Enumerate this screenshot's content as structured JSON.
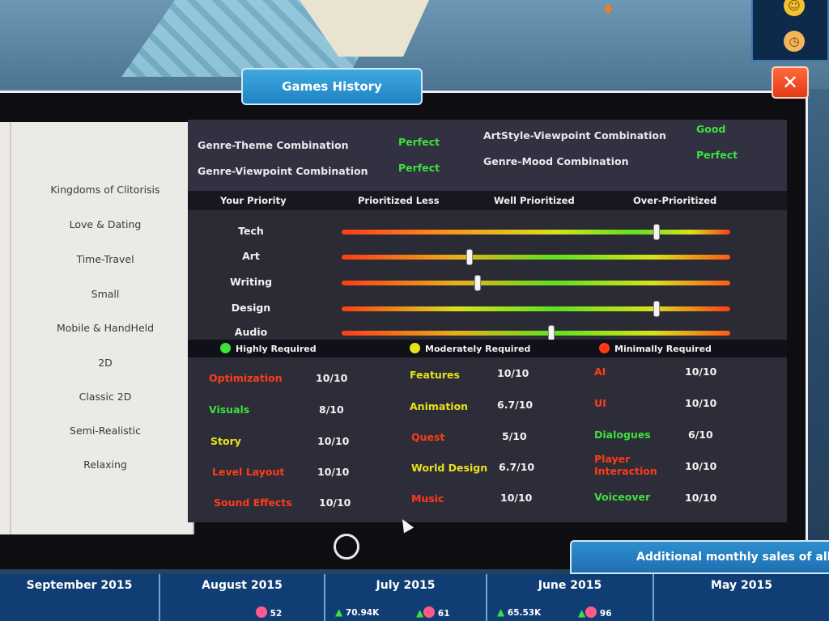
{
  "window": {
    "title": "Games History",
    "close_icon": "✕"
  },
  "sidebar": {
    "items": [
      {
        "label": "Kingdoms of Clitorisis"
      },
      {
        "label": "Love & Dating"
      },
      {
        "label": "Time-Travel"
      },
      {
        "label": "Small"
      },
      {
        "label": "Mobile & HandHeld"
      },
      {
        "label": "2D"
      },
      {
        "label": "Classic 2D"
      },
      {
        "label": "Semi-Realistic"
      },
      {
        "label": "Relaxing"
      }
    ]
  },
  "combinations": [
    {
      "label": "Genre-Theme Combination",
      "value": "Perfect"
    },
    {
      "label": "Genre-Viewpoint Combination",
      "value": "Perfect"
    },
    {
      "label": "ArtStyle-Viewpoint Combination",
      "value": "Good"
    },
    {
      "label": "Genre-Mood Combination",
      "value": "Perfect"
    }
  ],
  "priority": {
    "headers": {
      "your_priority": "Your Priority",
      "prioritized_less": "Prioritized Less",
      "well_prioritized": "Well Prioritized",
      "over_prioritized": "Over-Prioritized"
    },
    "rows": [
      {
        "label": "Tech",
        "level": 0.81
      },
      {
        "label": "Art",
        "level": 0.33
      },
      {
        "label": "Writing",
        "level": 0.35
      },
      {
        "label": "Design",
        "level": 0.81
      },
      {
        "label": "Audio",
        "level": 0.54
      }
    ]
  },
  "requirements": {
    "highly": "Highly Required",
    "moderately": "Moderately Required",
    "minimally": "Minimally Required",
    "colors": {
      "highly": "#3ee03e",
      "moderately": "#e8e21a",
      "minimally": "#ff3b17"
    }
  },
  "features": {
    "col1": [
      {
        "name": "Optimization",
        "score": "10/10",
        "req": "minimally"
      },
      {
        "name": "Visuals",
        "score": "8/10",
        "req": "highly"
      },
      {
        "name": "Story",
        "score": "10/10",
        "req": "moderately"
      },
      {
        "name": "Level Layout",
        "score": "10/10",
        "req": "minimally"
      },
      {
        "name": "Sound Effects",
        "score": "10/10",
        "req": "minimally"
      }
    ],
    "col2": [
      {
        "name": "Features",
        "score": "10/10",
        "req": "moderately"
      },
      {
        "name": "Animation",
        "score": "6.7/10",
        "req": "moderately"
      },
      {
        "name": "Quest",
        "score": "5/10",
        "req": "minimally"
      },
      {
        "name": "World Design",
        "score": "6.7/10",
        "req": "moderately"
      },
      {
        "name": "Music",
        "score": "10/10",
        "req": "minimally"
      }
    ],
    "col3": [
      {
        "name": "AI",
        "score": "10/10",
        "req": "minimally"
      },
      {
        "name": "UI",
        "score": "10/10",
        "req": "minimally"
      },
      {
        "name": "Dialogues",
        "score": "6/10",
        "req": "highly"
      },
      {
        "name": "Player Interaction",
        "score": "10/10",
        "req": "minimally"
      },
      {
        "name": "Voiceover",
        "score": "10/10",
        "req": "highly"
      }
    ]
  },
  "sales_tab": {
    "label": "Additional monthly sales of all"
  },
  "months": [
    {
      "name": "September 2015",
      "sales": "",
      "fans": ""
    },
    {
      "name": "August 2015",
      "sales": "",
      "fans": "52"
    },
    {
      "name": "July 2015",
      "sales": "70.94K",
      "fans": "61"
    },
    {
      "name": "June 2015",
      "sales": "65.53K",
      "fans": "96"
    },
    {
      "name": "May 2015",
      "sales": "",
      "fans": ""
    }
  ]
}
